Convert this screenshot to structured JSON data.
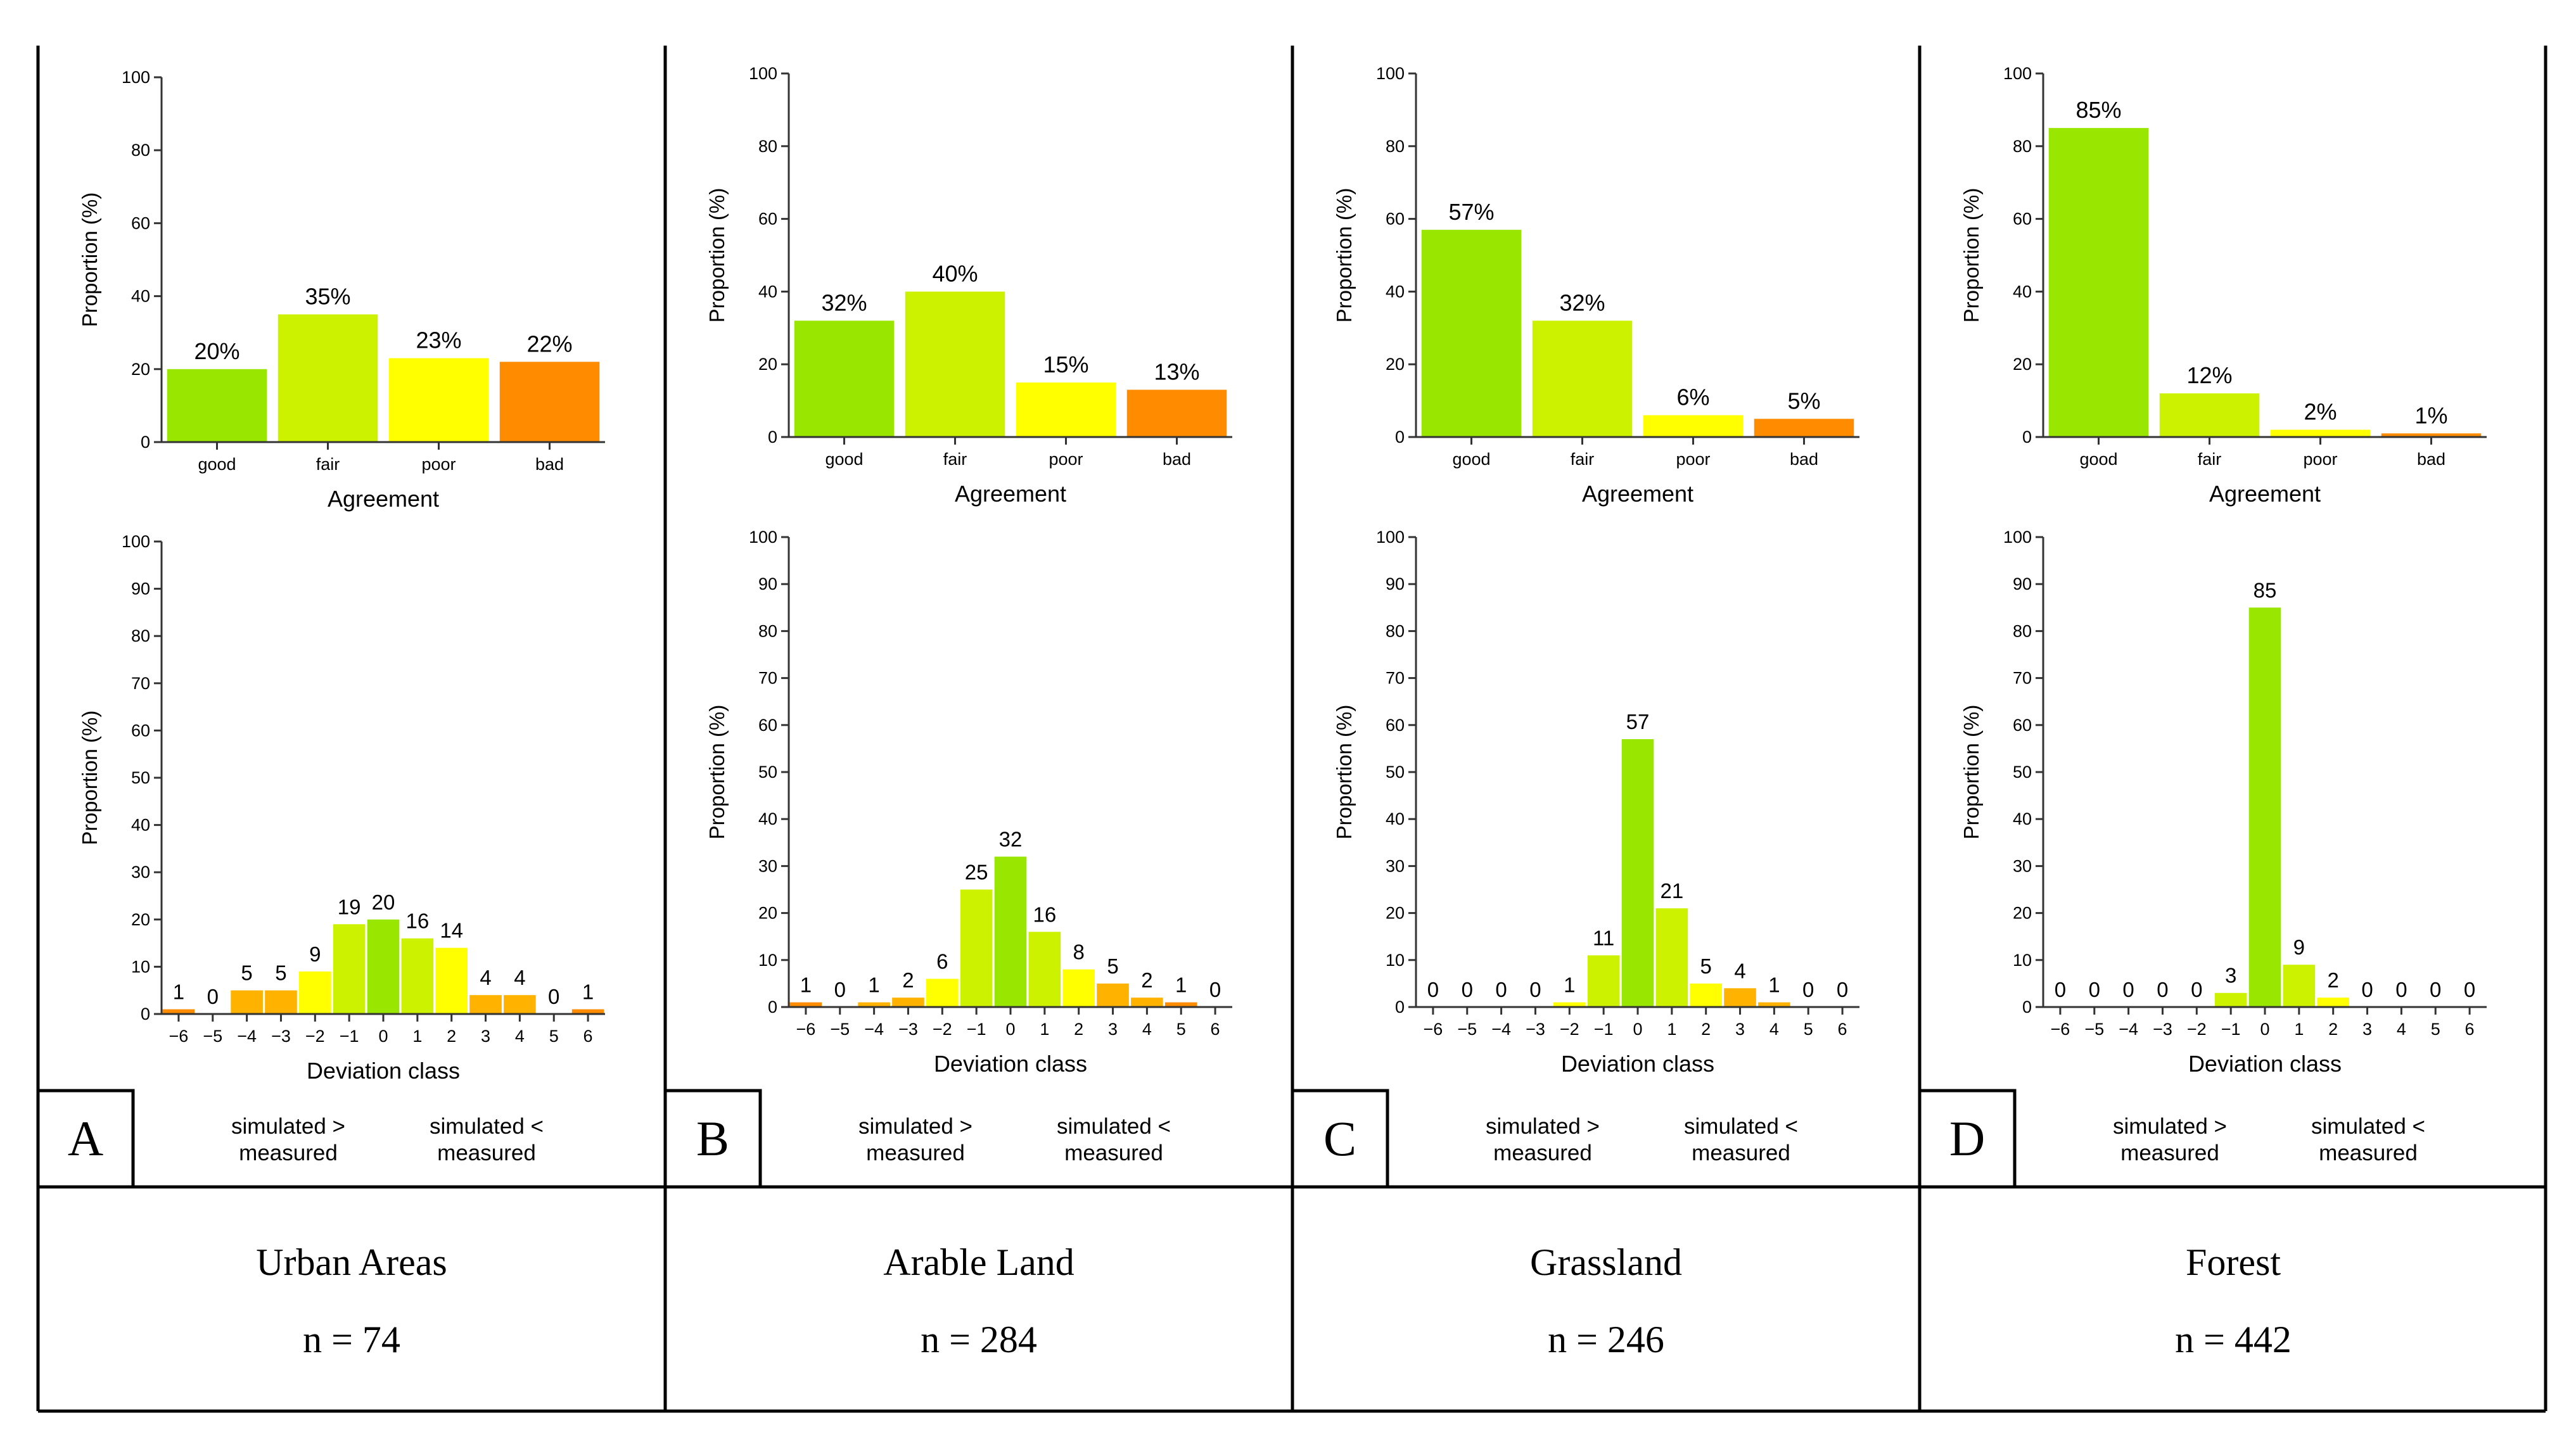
{
  "colors": {
    "good": "#99e600",
    "fair": "#ccf200",
    "poor": "#ffff00",
    "bad": "#ff8c00",
    "mid_orange": "#ffb300",
    "axis": "#333333",
    "border": "#000000"
  },
  "panels": [
    {
      "letter": "A",
      "name": "Urban Areas",
      "n_label": "n = 74",
      "note_left": [
        "simulated >",
        "measured"
      ],
      "note_right": [
        "simulated <",
        "measured"
      ]
    },
    {
      "letter": "B",
      "name": "Arable Land",
      "n_label": "n = 284",
      "note_left": [
        "simulated >",
        "measured"
      ],
      "note_right": [
        "simulated <",
        "measured"
      ]
    },
    {
      "letter": "C",
      "name": "Grassland",
      "n_label": "n = 246",
      "note_left": [
        "simulated >",
        "measured"
      ],
      "note_right": [
        "simulated <",
        "measured"
      ]
    },
    {
      "letter": "D",
      "name": "Forest",
      "n_label": "n = 442",
      "note_left": [
        "simulated >",
        "measured"
      ],
      "note_right": [
        "simulated <",
        "measured"
      ]
    }
  ],
  "chart_data": [
    {
      "id": "A-agreement",
      "panel": "A",
      "type": "bar",
      "categories": [
        "good",
        "fair",
        "poor",
        "bad"
      ],
      "values": [
        20,
        35,
        23,
        22
      ],
      "data_labels": [
        "20%",
        "35%",
        "23%",
        "22%"
      ],
      "xlabel": "Agreement",
      "ylabel": "Proportion (%)",
      "ylim": [
        0,
        100
      ],
      "yticks": [
        "0",
        "20",
        "40",
        "60",
        "80",
        "100"
      ]
    },
    {
      "id": "A-deviation",
      "panel": "A",
      "type": "bar",
      "categories": [
        "−6",
        "−5",
        "−4",
        "−3",
        "−2",
        "−1",
        "0",
        "1",
        "2",
        "3",
        "4",
        "5",
        "6"
      ],
      "values": [
        1,
        0,
        5,
        5,
        9,
        19,
        20,
        16,
        14,
        4,
        4,
        0,
        1
      ],
      "data_labels": [
        "1",
        "0",
        "5",
        "5",
        "9",
        "19",
        "20",
        "16",
        "14",
        "4",
        "4",
        "0",
        "1"
      ],
      "xlabel": "Deviation class",
      "ylabel": "Proportion (%)",
      "ylim": [
        0,
        100
      ],
      "yticks": [
        "0",
        "10",
        "20",
        "30",
        "40",
        "50",
        "60",
        "70",
        "80",
        "90",
        "100"
      ]
    },
    {
      "id": "B-agreement",
      "panel": "B",
      "type": "bar",
      "categories": [
        "good",
        "fair",
        "poor",
        "bad"
      ],
      "values": [
        32,
        40,
        15,
        13
      ],
      "data_labels": [
        "32%",
        "40%",
        "15%",
        "13%"
      ],
      "xlabel": "Agreement",
      "ylabel": "Proportion (%)",
      "ylim": [
        0,
        100
      ],
      "yticks": [
        "0",
        "20",
        "40",
        "60",
        "80",
        "100"
      ]
    },
    {
      "id": "B-deviation",
      "panel": "B",
      "type": "bar",
      "categories": [
        "−6",
        "−5",
        "−4",
        "−3",
        "−2",
        "−1",
        "0",
        "1",
        "2",
        "3",
        "4",
        "5",
        "6"
      ],
      "values": [
        1,
        0,
        1,
        2,
        6,
        25,
        32,
        16,
        8,
        5,
        2,
        1,
        0
      ],
      "data_labels": [
        "1",
        "0",
        "1",
        "2",
        "6",
        "25",
        "32",
        "16",
        "8",
        "5",
        "2",
        "1",
        "0"
      ],
      "xlabel": "Deviation class",
      "ylabel": "Proportion (%)",
      "ylim": [
        0,
        100
      ],
      "yticks": [
        "0",
        "10",
        "20",
        "30",
        "40",
        "50",
        "60",
        "70",
        "80",
        "90",
        "100"
      ]
    },
    {
      "id": "C-agreement",
      "panel": "C",
      "type": "bar",
      "categories": [
        "good",
        "fair",
        "poor",
        "bad"
      ],
      "values": [
        57,
        32,
        6,
        5
      ],
      "data_labels": [
        "57%",
        "32%",
        "6%",
        "5%"
      ],
      "xlabel": "Agreement",
      "ylabel": "Proportion (%)",
      "ylim": [
        0,
        100
      ],
      "yticks": [
        "0",
        "20",
        "40",
        "60",
        "80",
        "100"
      ]
    },
    {
      "id": "C-deviation",
      "panel": "C",
      "type": "bar",
      "categories": [
        "−6",
        "−5",
        "−4",
        "−3",
        "−2",
        "−1",
        "0",
        "1",
        "2",
        "3",
        "4",
        "5",
        "6"
      ],
      "values": [
        0,
        0,
        0,
        0,
        1,
        11,
        57,
        21,
        5,
        4,
        1,
        0,
        0
      ],
      "data_labels": [
        "0",
        "0",
        "0",
        "0",
        "1",
        "11",
        "57",
        "21",
        "5",
        "4",
        "1",
        "0",
        "0"
      ],
      "xlabel": "Deviation class",
      "ylabel": "Proportion (%)",
      "ylim": [
        0,
        100
      ],
      "yticks": [
        "0",
        "10",
        "20",
        "30",
        "40",
        "50",
        "60",
        "70",
        "80",
        "90",
        "100"
      ]
    },
    {
      "id": "D-agreement",
      "panel": "D",
      "type": "bar",
      "categories": [
        "good",
        "fair",
        "poor",
        "bad"
      ],
      "values": [
        85,
        12,
        2,
        1
      ],
      "data_labels": [
        "85%",
        "12%",
        "2%",
        "1%"
      ],
      "xlabel": "Agreement",
      "ylabel": "Proportion (%)",
      "ylim": [
        0,
        100
      ],
      "yticks": [
        "0",
        "20",
        "40",
        "60",
        "80",
        "100"
      ]
    },
    {
      "id": "D-deviation",
      "panel": "D",
      "type": "bar",
      "categories": [
        "−6",
        "−5",
        "−4",
        "−3",
        "−2",
        "−1",
        "0",
        "1",
        "2",
        "3",
        "4",
        "5",
        "6"
      ],
      "values": [
        0,
        0,
        0,
        0,
        0,
        3,
        85,
        9,
        2,
        0,
        0,
        0,
        0
      ],
      "data_labels": [
        "0",
        "0",
        "0",
        "0",
        "0",
        "3",
        "85",
        "9",
        "2",
        "0",
        "0",
        "0",
        "0"
      ],
      "xlabel": "Deviation class",
      "ylabel": "Proportion (%)",
      "ylim": [
        0,
        100
      ],
      "yticks": [
        "0",
        "10",
        "20",
        "30",
        "40",
        "50",
        "60",
        "70",
        "80",
        "90",
        "100"
      ]
    }
  ]
}
